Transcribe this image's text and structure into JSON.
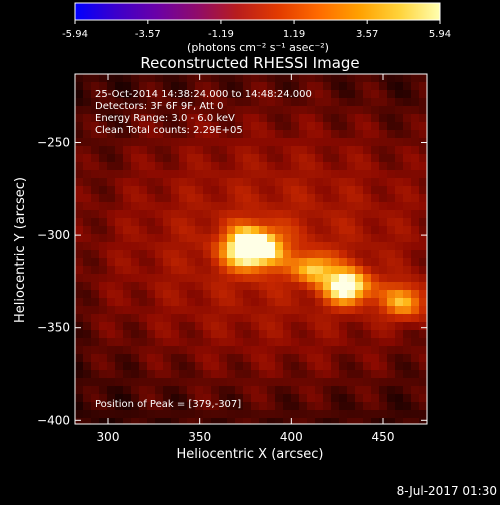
{
  "colorbar": {
    "tick_labels": [
      "-5.94",
      "-3.57",
      "-1.19",
      "1.19",
      "3.57",
      "5.94"
    ],
    "unit_label": "(photons cm⁻² s⁻¹ asec⁻²)",
    "range": [
      -5.94,
      5.94
    ],
    "colormap": [
      "#0000ff",
      "#3b00cc",
      "#6a00a8",
      "#8f0b6b",
      "#b81d1d",
      "#e23a00",
      "#ff6a00",
      "#ffa000",
      "#ffd33a",
      "#ffffb0"
    ]
  },
  "image": {
    "title": "Reconstructed RHESSI Image",
    "info_lines": [
      "25-Oct-2014 14:38:24.000 to 14:48:24.000",
      "Detectors: 3F 6F 9F, Att 0",
      "Energy Range: 3.0 - 6.0 keV",
      "Clean    Total counts: 2.29E+05"
    ],
    "peak_text": "Position of Peak = [379,-307]",
    "x_axis": {
      "label": "Heliocentric X (arcsec)",
      "range": [
        282,
        474
      ],
      "ticks": [
        300,
        350,
        400,
        450
      ]
    },
    "y_axis": {
      "label": "Heliocentric Y (arcsec)",
      "range": [
        -402,
        -213
      ],
      "ticks": [
        -250,
        -300,
        -350,
        -400
      ]
    },
    "sources": [
      {
        "x": 379,
        "y": -307,
        "peak": 1.0,
        "sigma_x": 11,
        "sigma_y": 8
      },
      {
        "x": 431,
        "y": -328,
        "peak": 0.82,
        "sigma_x": 9,
        "sigma_y": 7
      },
      {
        "x": 462,
        "y": -336,
        "peak": 0.6,
        "sigma_x": 9,
        "sigma_y": 7
      },
      {
        "x": 412,
        "y": -318,
        "peak": 0.55,
        "sigma_x": 8,
        "sigma_y": 6
      }
    ]
  },
  "footer": {
    "date_text": "8-Jul-2017 01:30"
  }
}
